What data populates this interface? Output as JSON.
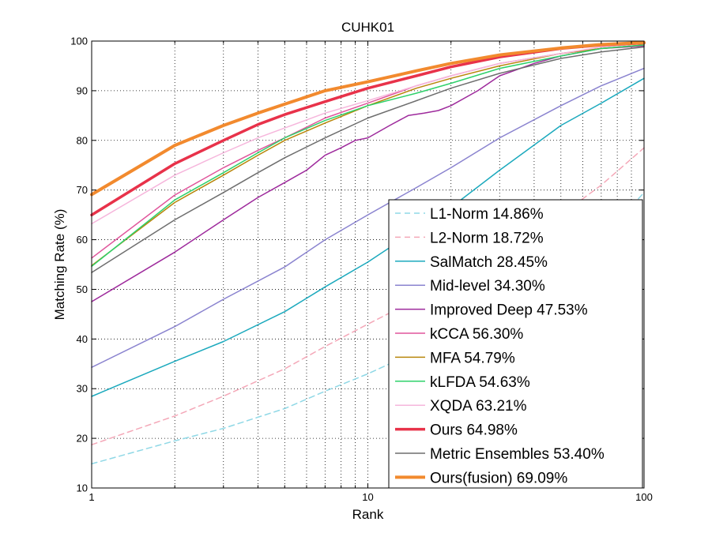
{
  "chart_data": {
    "type": "line",
    "title": "CUHK01",
    "xlabel": "Rank",
    "ylabel": "Matching Rate (%)",
    "x_scale": "log",
    "xlim": [
      1,
      100
    ],
    "ylim": [
      10,
      100
    ],
    "x_ticks": [
      1,
      10,
      100
    ],
    "x_tick_labels": [
      "1",
      "10",
      "100"
    ],
    "y_ticks": [
      10,
      20,
      30,
      40,
      50,
      60,
      70,
      80,
      90,
      100
    ],
    "y_tick_labels": [
      "10",
      "20",
      "30",
      "40",
      "50",
      "60",
      "70",
      "80",
      "90",
      "100"
    ],
    "grid": true,
    "legend_position": "bottom-right",
    "series": [
      {
        "name": "L1-Norm 14.86%",
        "color": "#8fd8e6",
        "dash": "dashed",
        "width": 1.5,
        "x": [
          1,
          2,
          3,
          5,
          7,
          10,
          15,
          20,
          30,
          50,
          70,
          100
        ],
        "y": [
          14.86,
          19.5,
          22,
          26,
          29.5,
          33,
          37.5,
          41,
          46,
          54,
          60,
          69.5
        ]
      },
      {
        "name": "L2-Norm 18.72%",
        "color": "#f4a8b8",
        "dash": "dashed",
        "width": 1.5,
        "x": [
          1,
          2,
          3,
          5,
          7,
          10,
          15,
          20,
          30,
          50,
          70,
          100
        ],
        "y": [
          18.72,
          24.5,
          28.5,
          34,
          38.5,
          43,
          48,
          52,
          58,
          65,
          71,
          78.5
        ]
      },
      {
        "name": "SalMatch 28.45%",
        "color": "#1ba9bd",
        "dash": "solid",
        "width": 1.5,
        "x": [
          1,
          2,
          3,
          5,
          7,
          10,
          15,
          20,
          30,
          50,
          70,
          100
        ],
        "y": [
          28.45,
          35.5,
          39.5,
          45.5,
          50.5,
          55.5,
          62,
          66.5,
          74,
          83,
          87.5,
          92.5
        ]
      },
      {
        "name": "Mid-level 34.30%",
        "color": "#8a83cf",
        "dash": "solid",
        "width": 1.5,
        "x": [
          1,
          2,
          3,
          5,
          7,
          10,
          15,
          20,
          30,
          50,
          70,
          100
        ],
        "y": [
          34.3,
          42.5,
          48,
          54.5,
          60,
          65,
          70.5,
          74.5,
          80.5,
          87,
          91,
          94.5
        ]
      },
      {
        "name": "Improved Deep 47.53%",
        "color": "#9e2a9c",
        "dash": "solid",
        "width": 1.5,
        "x": [
          1,
          2,
          3,
          4,
          5,
          6,
          7,
          8,
          9,
          10,
          12,
          14,
          16,
          18,
          20,
          25,
          30,
          40,
          50,
          70,
          100
        ],
        "y": [
          47.53,
          57.5,
          64,
          68.5,
          71.5,
          74,
          77,
          78.5,
          80,
          80.5,
          83,
          85,
          85.5,
          86,
          87,
          90,
          93,
          95.5,
          97,
          98.5,
          99
        ]
      },
      {
        "name": "kCCA 56.30%",
        "color": "#e0559b",
        "dash": "solid",
        "width": 1.5,
        "x": [
          1,
          2,
          3,
          4,
          5,
          7,
          10,
          15,
          20,
          30,
          50,
          70,
          100
        ],
        "y": [
          56.3,
          69,
          74.5,
          78,
          80.5,
          84.5,
          87.5,
          91,
          93,
          95.5,
          97.5,
          98.5,
          99.2
        ]
      },
      {
        "name": "MFA 54.79%",
        "color": "#b8860b",
        "dash": "solid",
        "width": 1.5,
        "x": [
          1,
          2,
          3,
          4,
          5,
          7,
          10,
          15,
          20,
          30,
          50,
          70,
          100
        ],
        "y": [
          54.79,
          67.5,
          73,
          77,
          80,
          83.5,
          87,
          90.5,
          92.5,
          95,
          97.5,
          98.5,
          99.2
        ]
      },
      {
        "name": "kLFDA 54.63%",
        "color": "#2ed16a",
        "dash": "solid",
        "width": 1.5,
        "x": [
          1,
          2,
          3,
          4,
          5,
          7,
          10,
          15,
          20,
          30,
          50,
          70,
          100
        ],
        "y": [
          54.63,
          68,
          73.5,
          77.5,
          80.5,
          84,
          87,
          89.5,
          91.5,
          94.5,
          97,
          98.5,
          99.2
        ]
      },
      {
        "name": "XQDA 63.21%",
        "color": "#f6b6dc",
        "dash": "solid",
        "width": 1.5,
        "x": [
          1,
          2,
          3,
          4,
          5,
          7,
          10,
          15,
          20,
          30,
          50,
          70,
          100
        ],
        "y": [
          63.21,
          73,
          77.5,
          80.5,
          82.5,
          85.5,
          88,
          91,
          93,
          95.5,
          97.5,
          98.8,
          99.5
        ]
      },
      {
        "name": "Ours 64.98%",
        "color": "#e8324a",
        "dash": "solid",
        "width": 3.5,
        "x": [
          1,
          2,
          3,
          4,
          5,
          7,
          10,
          15,
          20,
          30,
          50,
          70,
          100
        ],
        "y": [
          64.98,
          75.3,
          80,
          83.2,
          85.2,
          87.8,
          90.5,
          93,
          94.8,
          96.8,
          98.5,
          99.2,
          99.6
        ]
      },
      {
        "name": "Metric Ensembles 53.40%",
        "color": "#6e6e6e",
        "dash": "solid",
        "width": 1.5,
        "x": [
          1,
          2,
          3,
          4,
          5,
          7,
          10,
          15,
          20,
          30,
          50,
          70,
          100
        ],
        "y": [
          53.4,
          64,
          69.5,
          73.5,
          76.5,
          80.5,
          84.5,
          88,
          90.5,
          93.5,
          96.5,
          97.8,
          98.8
        ]
      },
      {
        "name": "Ours(fusion) 69.09%",
        "color": "#f28a2e",
        "dash": "solid",
        "width": 4,
        "x": [
          1,
          2,
          3,
          4,
          5,
          7,
          10,
          15,
          20,
          30,
          50,
          70,
          100
        ],
        "y": [
          69.09,
          79,
          83,
          85.5,
          87.3,
          90,
          91.8,
          94,
          95.5,
          97.2,
          98.6,
          99.3,
          99.7
        ]
      }
    ]
  }
}
